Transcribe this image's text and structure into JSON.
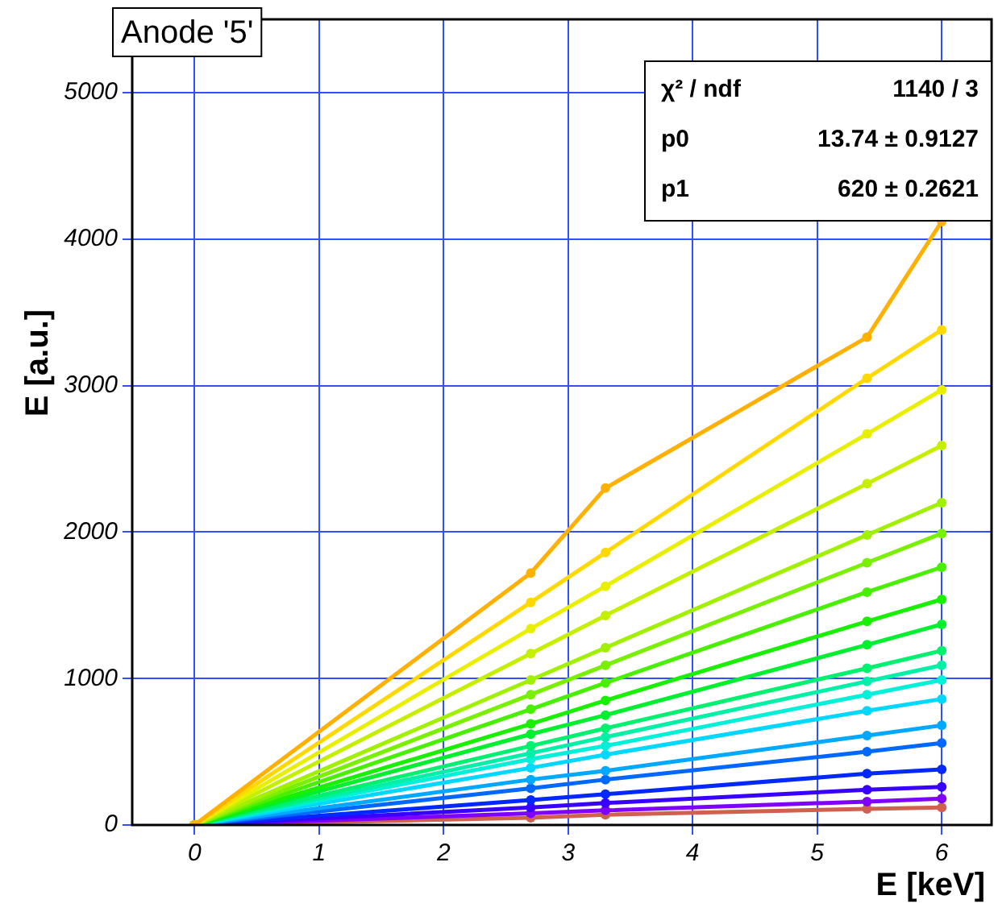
{
  "chart_data": {
    "type": "line",
    "title": "Anode '5'",
    "xlabel": "E [keV]",
    "ylabel": "E [a.u.]",
    "annotations": [
      "χ² / ndf",
      "1140 / 3",
      "p0",
      "13.74 ± 0.9127",
      "p1",
      "620 ± 0.2621"
    ],
    "x": [
      0,
      2.7,
      3.3,
      5.4,
      6.0
    ],
    "xlim": [
      -0.5,
      6.4
    ],
    "xticks": [
      0,
      1,
      2,
      3,
      4,
      5,
      6
    ],
    "ylim": [
      0,
      5500
    ],
    "yticks": [
      0,
      1000,
      2000,
      3000,
      4000,
      5000
    ],
    "grid": true,
    "legend": false,
    "marker": "circle",
    "line_style": "solid",
    "series": [
      {
        "color": "#ffb000",
        "values": [
          0,
          1720,
          2300,
          3330,
          4120
        ]
      },
      {
        "color": "#ffd800",
        "values": [
          0,
          1520,
          1860,
          3050,
          3380
        ]
      },
      {
        "color": "#e8f000",
        "values": [
          0,
          1340,
          1630,
          2670,
          2970
        ]
      },
      {
        "color": "#c4f000",
        "values": [
          0,
          1170,
          1430,
          2330,
          2590
        ]
      },
      {
        "color": "#a0f000",
        "values": [
          0,
          990,
          1210,
          1980,
          2200
        ]
      },
      {
        "color": "#78f000",
        "values": [
          0,
          890,
          1090,
          1790,
          1990
        ]
      },
      {
        "color": "#48f000",
        "values": [
          0,
          790,
          970,
          1590,
          1760
        ]
      },
      {
        "color": "#18f000",
        "values": [
          0,
          690,
          850,
          1390,
          1540
        ]
      },
      {
        "color": "#00f030",
        "values": [
          0,
          620,
          750,
          1230,
          1370
        ]
      },
      {
        "color": "#00f070",
        "values": [
          0,
          540,
          660,
          1070,
          1190
        ]
      },
      {
        "color": "#00f0a8",
        "values": [
          0,
          490,
          600,
          980,
          1090
        ]
      },
      {
        "color": "#00f0d8",
        "values": [
          0,
          450,
          540,
          890,
          990
        ]
      },
      {
        "color": "#00d8ff",
        "values": [
          0,
          390,
          480,
          780,
          860
        ]
      },
      {
        "color": "#00a8ff",
        "values": [
          0,
          310,
          370,
          610,
          680
        ]
      },
      {
        "color": "#0068ff",
        "values": [
          0,
          250,
          310,
          500,
          560
        ]
      },
      {
        "color": "#0028ff",
        "values": [
          0,
          170,
          210,
          350,
          380
        ]
      },
      {
        "color": "#3800ff",
        "values": [
          0,
          120,
          150,
          240,
          260
        ]
      },
      {
        "color": "#8000ff",
        "values": [
          0,
          80,
          100,
          160,
          180
        ]
      },
      {
        "color": "#d06050",
        "values": [
          0,
          50,
          70,
          110,
          120
        ]
      }
    ]
  }
}
